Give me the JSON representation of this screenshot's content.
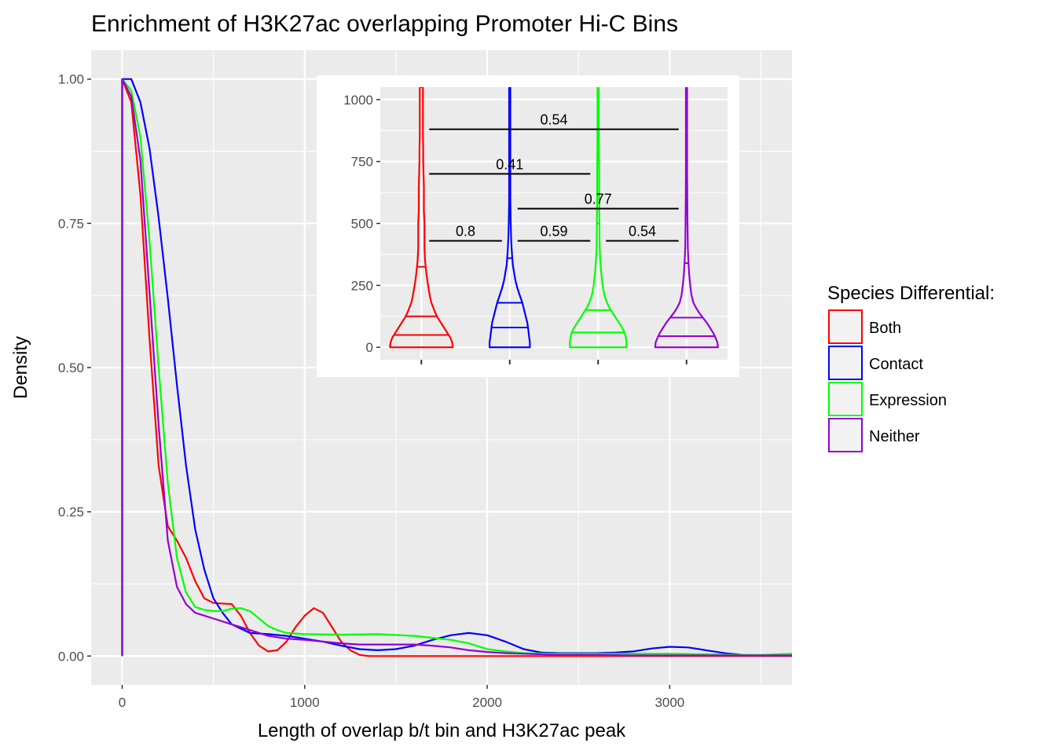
{
  "chart_data": [
    {
      "type": "line",
      "title": "Enrichment of H3K27ac overlapping Promoter Hi-C Bins",
      "xlabel": "Length of overlap b/t bin and H3K27ac peak",
      "ylabel": "Density",
      "xlim": [
        -170,
        3670
      ],
      "ylim": [
        -0.05,
        1.05
      ],
      "x_ticks": [
        0,
        1000,
        2000,
        3000
      ],
      "x_tick_labels": [
        "0",
        "1000",
        "2000",
        "3000"
      ],
      "y_ticks": [
        0,
        0.25,
        0.5,
        0.75,
        1.0
      ],
      "y_tick_labels": [
        "0.00",
        "0.25",
        "0.50",
        "0.75",
        "1.00"
      ],
      "grid": true,
      "legend": {
        "title": "Species Differential:",
        "position": "right",
        "entries": [
          "Both",
          "Contact",
          "Expression",
          "Neither"
        ]
      },
      "series": [
        {
          "name": "Both",
          "color": "#ff0000",
          "points": [
            [
              0,
              0
            ],
            [
              0,
              1.0
            ],
            [
              50,
              0.96
            ],
            [
              100,
              0.8
            ],
            [
              150,
              0.55
            ],
            [
              200,
              0.33
            ],
            [
              250,
              0.225
            ],
            [
              300,
              0.2
            ],
            [
              350,
              0.17
            ],
            [
              400,
              0.13
            ],
            [
              450,
              0.1
            ],
            [
              500,
              0.092
            ],
            [
              600,
              0.09
            ],
            [
              650,
              0.07
            ],
            [
              700,
              0.04
            ],
            [
              750,
              0.018
            ],
            [
              800,
              0.008
            ],
            [
              850,
              0.01
            ],
            [
              900,
              0.025
            ],
            [
              950,
              0.05
            ],
            [
              1000,
              0.07
            ],
            [
              1050,
              0.083
            ],
            [
              1100,
              0.075
            ],
            [
              1150,
              0.05
            ],
            [
              1200,
              0.025
            ],
            [
              1250,
              0.01
            ],
            [
              1300,
              0.002
            ],
            [
              1350,
              0
            ],
            [
              3670,
              0
            ]
          ]
        },
        {
          "name": "Contact",
          "color": "#0000ff",
          "points": [
            [
              0,
              0
            ],
            [
              0,
              1.0
            ],
            [
              50,
              1.0
            ],
            [
              100,
              0.96
            ],
            [
              150,
              0.88
            ],
            [
              200,
              0.76
            ],
            [
              250,
              0.62
            ],
            [
              300,
              0.47
            ],
            [
              350,
              0.33
            ],
            [
              400,
              0.22
            ],
            [
              450,
              0.15
            ],
            [
              500,
              0.1
            ],
            [
              550,
              0.075
            ],
            [
              600,
              0.055
            ],
            [
              700,
              0.04
            ],
            [
              800,
              0.038
            ],
            [
              900,
              0.035
            ],
            [
              1000,
              0.03
            ],
            [
              1100,
              0.025
            ],
            [
              1200,
              0.018
            ],
            [
              1300,
              0.012
            ],
            [
              1400,
              0.01
            ],
            [
              1500,
              0.012
            ],
            [
              1600,
              0.018
            ],
            [
              1700,
              0.028
            ],
            [
              1800,
              0.036
            ],
            [
              1900,
              0.04
            ],
            [
              2000,
              0.036
            ],
            [
              2100,
              0.025
            ],
            [
              2200,
              0.012
            ],
            [
              2300,
              0.006
            ],
            [
              2400,
              0.005
            ],
            [
              2500,
              0.005
            ],
            [
              2600,
              0.005
            ],
            [
              2700,
              0.006
            ],
            [
              2800,
              0.008
            ],
            [
              2900,
              0.013
            ],
            [
              3000,
              0.016
            ],
            [
              3100,
              0.015
            ],
            [
              3200,
              0.01
            ],
            [
              3300,
              0.005
            ],
            [
              3400,
              0.002
            ],
            [
              3500,
              0.001
            ],
            [
              3670,
              0.001
            ]
          ]
        },
        {
          "name": "Expression",
          "color": "#00ff00",
          "points": [
            [
              0,
              0
            ],
            [
              0,
              1.0
            ],
            [
              50,
              0.98
            ],
            [
              100,
              0.9
            ],
            [
              150,
              0.72
            ],
            [
              200,
              0.5
            ],
            [
              250,
              0.3
            ],
            [
              300,
              0.17
            ],
            [
              350,
              0.11
            ],
            [
              400,
              0.085
            ],
            [
              450,
              0.08
            ],
            [
              500,
              0.078
            ],
            [
              550,
              0.078
            ],
            [
              600,
              0.082
            ],
            [
              650,
              0.083
            ],
            [
              700,
              0.078
            ],
            [
              750,
              0.065
            ],
            [
              800,
              0.052
            ],
            [
              850,
              0.045
            ],
            [
              900,
              0.04
            ],
            [
              1000,
              0.038
            ],
            [
              1200,
              0.037
            ],
            [
              1400,
              0.038
            ],
            [
              1600,
              0.035
            ],
            [
              1800,
              0.028
            ],
            [
              1900,
              0.022
            ],
            [
              2000,
              0.012
            ],
            [
              2100,
              0.008
            ],
            [
              2200,
              0.005
            ],
            [
              2400,
              0.004
            ],
            [
              2600,
              0.004
            ],
            [
              2800,
              0.004
            ],
            [
              3000,
              0.004
            ],
            [
              3200,
              0.003
            ],
            [
              3400,
              0.002
            ],
            [
              3500,
              0.002
            ],
            [
              3670,
              0.004
            ]
          ]
        },
        {
          "name": "Neither",
          "color": "#9400d3",
          "points": [
            [
              0,
              0
            ],
            [
              0,
              1.0
            ],
            [
              50,
              0.97
            ],
            [
              100,
              0.86
            ],
            [
              150,
              0.63
            ],
            [
              200,
              0.4
            ],
            [
              250,
              0.2
            ],
            [
              300,
              0.12
            ],
            [
              350,
              0.09
            ],
            [
              400,
              0.075
            ],
            [
              500,
              0.065
            ],
            [
              600,
              0.055
            ],
            [
              700,
              0.045
            ],
            [
              800,
              0.035
            ],
            [
              900,
              0.03
            ],
            [
              1000,
              0.028
            ],
            [
              1100,
              0.025
            ],
            [
              1200,
              0.022
            ],
            [
              1300,
              0.02
            ],
            [
              1400,
              0.02
            ],
            [
              1500,
              0.02
            ],
            [
              1600,
              0.02
            ],
            [
              1700,
              0.018
            ],
            [
              1800,
              0.015
            ],
            [
              1900,
              0.01
            ],
            [
              2000,
              0.007
            ],
            [
              2100,
              0.005
            ],
            [
              2200,
              0.004
            ],
            [
              2400,
              0.002
            ],
            [
              2600,
              0.002
            ],
            [
              2800,
              0.001
            ],
            [
              3000,
              0.001
            ],
            [
              3670,
              0.001
            ]
          ]
        }
      ]
    },
    {
      "type": "violin",
      "xlabel": "",
      "ylabel": "",
      "ylim": [
        -50,
        1050
      ],
      "y_ticks": [
        0,
        250,
        500,
        750,
        1000
      ],
      "y_tick_labels": [
        "0",
        "250",
        "500",
        "750",
        "1000"
      ],
      "grid": true,
      "groups": [
        {
          "name": "Both",
          "color": "#ff0000",
          "quantiles": [
            50,
            125,
            325
          ],
          "profile": [
            [
              0,
              50
            ],
            [
              20,
              49
            ],
            [
              40,
              46
            ],
            [
              60,
              41
            ],
            [
              80,
              36
            ],
            [
              100,
              31
            ],
            [
              120,
              26
            ],
            [
              140,
              22
            ],
            [
              160,
              19
            ],
            [
              180,
              16
            ],
            [
              200,
              14
            ],
            [
              230,
              12
            ],
            [
              260,
              10
            ],
            [
              300,
              8
            ],
            [
              350,
              6
            ],
            [
              400,
              5
            ],
            [
              450,
              5
            ],
            [
              500,
              5
            ],
            [
              550,
              4
            ],
            [
              600,
              4
            ],
            [
              650,
              4
            ],
            [
              700,
              3.5
            ],
            [
              750,
              3
            ],
            [
              800,
              3
            ],
            [
              850,
              2.5
            ],
            [
              900,
              2.5
            ],
            [
              950,
              2.5
            ],
            [
              1000,
              2.5
            ],
            [
              1050,
              2.5
            ]
          ]
        },
        {
          "name": "Contact",
          "color": "#0000ff",
          "quantiles": [
            80,
            180,
            360
          ],
          "profile": [
            [
              0,
              32
            ],
            [
              20,
              32
            ],
            [
              40,
              31
            ],
            [
              60,
              30
            ],
            [
              80,
              29
            ],
            [
              100,
              28
            ],
            [
              120,
              26
            ],
            [
              150,
              23
            ],
            [
              180,
              20
            ],
            [
              210,
              16
            ],
            [
              240,
              12
            ],
            [
              270,
              9
            ],
            [
              300,
              7
            ],
            [
              330,
              5
            ],
            [
              360,
              4
            ],
            [
              400,
              3
            ],
            [
              450,
              2
            ],
            [
              500,
              1.5
            ],
            [
              550,
              1.2
            ],
            [
              600,
              1
            ],
            [
              700,
              1
            ],
            [
              800,
              1
            ],
            [
              900,
              1
            ],
            [
              1000,
              1
            ],
            [
              1050,
              1
            ]
          ]
        },
        {
          "name": "Expression",
          "color": "#00ff00",
          "quantiles": [
            60,
            150,
            500
          ],
          "profile": [
            [
              0,
              45
            ],
            [
              20,
              45
            ],
            [
              40,
              44
            ],
            [
              60,
              42
            ],
            [
              80,
              38
            ],
            [
              100,
              33
            ],
            [
              120,
              28
            ],
            [
              140,
              23
            ],
            [
              160,
              18
            ],
            [
              180,
              14
            ],
            [
              210,
              10
            ],
            [
              250,
              7
            ],
            [
              300,
              5
            ],
            [
              350,
              3.5
            ],
            [
              400,
              2.5
            ],
            [
              450,
              2
            ],
            [
              500,
              2
            ],
            [
              600,
              1.5
            ],
            [
              700,
              1.5
            ],
            [
              800,
              1.2
            ],
            [
              900,
              1
            ],
            [
              1000,
              1
            ],
            [
              1050,
              1
            ]
          ]
        },
        {
          "name": "Neither",
          "color": "#9400d3",
          "quantiles": [
            45,
            120,
            340
          ],
          "profile": [
            [
              0,
              50
            ],
            [
              20,
              49
            ],
            [
              40,
              46
            ],
            [
              60,
              42
            ],
            [
              80,
              37
            ],
            [
              100,
              32
            ],
            [
              120,
              26
            ],
            [
              140,
              20
            ],
            [
              160,
              15
            ],
            [
              180,
              11
            ],
            [
              210,
              8
            ],
            [
              250,
              6
            ],
            [
              300,
              4
            ],
            [
              350,
              3
            ],
            [
              400,
              2
            ],
            [
              450,
              1.8
            ],
            [
              500,
              1.5
            ],
            [
              600,
              1.2
            ],
            [
              700,
              1
            ],
            [
              800,
              1
            ],
            [
              900,
              1
            ],
            [
              1000,
              1
            ],
            [
              1050,
              1
            ]
          ]
        }
      ],
      "comparisons": [
        {
          "from": 0,
          "to": 1,
          "y": 430,
          "label": "0.8"
        },
        {
          "from": 1,
          "to": 2,
          "y": 430,
          "label": "0.59"
        },
        {
          "from": 2,
          "to": 3,
          "y": 430,
          "label": "0.54"
        },
        {
          "from": 1,
          "to": 3,
          "y": 560,
          "label": "0.77"
        },
        {
          "from": 0,
          "to": 2,
          "y": 700,
          "label": "0.41"
        },
        {
          "from": 0,
          "to": 3,
          "y": 880,
          "label": "0.54"
        }
      ]
    }
  ]
}
